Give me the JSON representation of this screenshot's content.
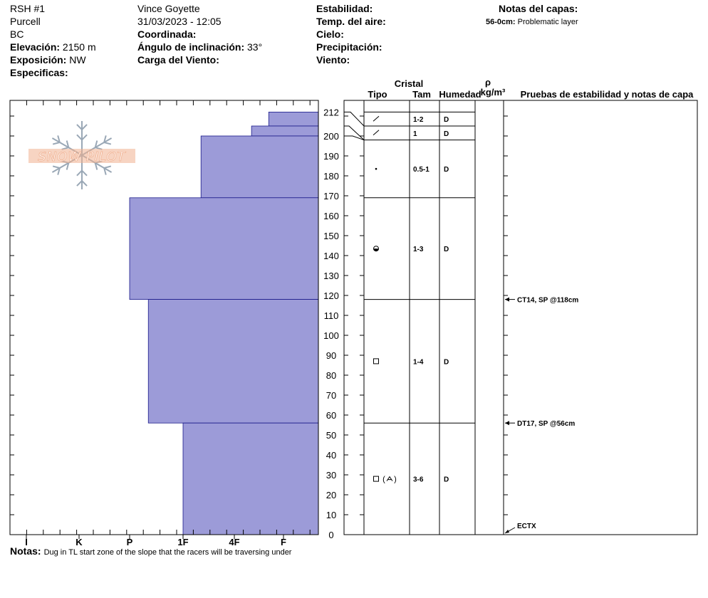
{
  "header": {
    "site": "RSH #1",
    "range": "Purcell",
    "state": "BC",
    "elevation_label": "Elevación:",
    "elevation": "2150 m",
    "aspect_label": "Exposición:",
    "aspect": "NW",
    "specifics_label": "Especificas:",
    "observer": "Vince Goyette",
    "datetime": "31/03/2023 - 12:05",
    "coord_label": "Coordinada:",
    "incline_label": "Ángulo de inclinación:",
    "incline": "33°",
    "wind_load_label": "Carga del Viento:",
    "stability_label": "Estabilidad:",
    "air_temp_label": "Temp. del aire:",
    "sky_label": "Cielo:",
    "precip_label": "Precipitación:",
    "wind_label": "Viento:",
    "layer_notes_title": "Notas del capas:",
    "layer_note_range": "56-0cm:",
    "layer_note_text": "Problematic layer"
  },
  "notes": {
    "label": "Notas:",
    "text": "Dug in TL start zone of the slope that the racers will be traversing under"
  },
  "logo_text": "SNOW PILOT",
  "colors": {
    "hardness_fill": "#9c9bd8",
    "hardness_stroke": "#1a1a8a",
    "logo": "#f0b090",
    "snowflake": "#9aa8b6"
  },
  "chart_data": {
    "type": "snow_profile",
    "total_depth_cm": 212,
    "y_ticks": [
      212,
      200,
      190,
      180,
      170,
      160,
      150,
      140,
      130,
      120,
      110,
      100,
      90,
      80,
      70,
      60,
      50,
      40,
      30,
      20,
      10,
      0
    ],
    "hardness_labels": [
      "I",
      "K",
      "P",
      "1F",
      "4F",
      "F"
    ],
    "column_headers": {
      "crystal": "Cristal",
      "type": "Tipo",
      "size": "Tam",
      "moisture": "Humedad",
      "density_symbol": "ρ",
      "density_unit": "kg/m³",
      "tests": "Pruebas de estabilidad y notas de capa"
    },
    "hardness_profile": [
      {
        "top": 212,
        "bottom": 205,
        "hardness_index": 5.7
      },
      {
        "top": 205,
        "bottom": 200,
        "hardness_index": 5.35
      },
      {
        "top": 200,
        "bottom": 169,
        "hardness_index": 4.35
      },
      {
        "top": 169,
        "bottom": 118,
        "hardness_index": 3.0
      },
      {
        "top": 118,
        "bottom": 56,
        "hardness_index": 3.35
      },
      {
        "top": 56,
        "bottom": 0,
        "hardness_index": 4.0
      }
    ],
    "layers": [
      {
        "top": 212,
        "bottom": 205,
        "type_symbol": "precipitation-particles",
        "size": "1-2",
        "moisture": "D"
      },
      {
        "top": 205,
        "bottom": 198,
        "type_symbol": "precipitation-particles",
        "size": "1",
        "moisture": "D"
      },
      {
        "top": 198,
        "bottom": 169,
        "type_symbol": "rounded-grains",
        "size": "0.5-1",
        "moisture": "D"
      },
      {
        "top": 169,
        "bottom": 118,
        "type_symbol": "melt-forms-rounded",
        "size": "1-3",
        "moisture": "D"
      },
      {
        "top": 118,
        "bottom": 56,
        "type_symbol": "faceted-crystals",
        "size": "1-4",
        "moisture": "D"
      },
      {
        "top": 56,
        "bottom": 0,
        "type_symbol": "faceted-crystals-depth-hoar",
        "size": "3-6",
        "moisture": "D"
      }
    ],
    "stability_tests": [
      {
        "depth": 118,
        "text": "CT14, SP @118cm"
      },
      {
        "depth": 56,
        "text": "DT17, SP @56cm"
      },
      {
        "depth": 0,
        "text": "ECTX"
      }
    ]
  }
}
